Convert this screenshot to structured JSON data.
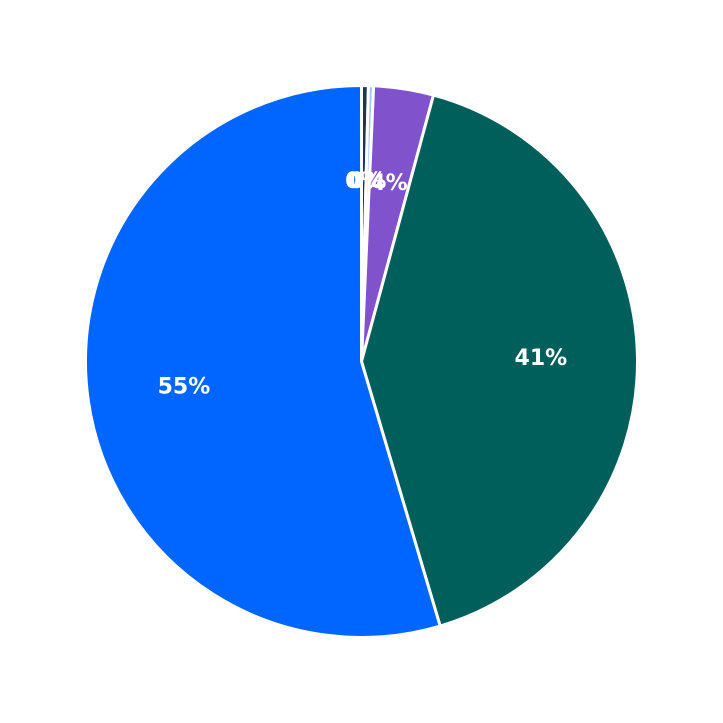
{
  "chart_data": {
    "type": "pie",
    "start_angle_deg": 90,
    "direction": "clockwise",
    "slices": [
      {
        "value": 0.4,
        "label": "0%",
        "color": "#1d3557"
      },
      {
        "value": 0.3,
        "label": "0%",
        "color": "#a9c7f5"
      },
      {
        "value": 3.5,
        "label": "4%",
        "color": "#8052cc"
      },
      {
        "value": 41.2,
        "label": "41%",
        "color": "#005f5a"
      },
      {
        "value": 54.6,
        "label": "55%",
        "color": "#0066ff"
      }
    ]
  }
}
